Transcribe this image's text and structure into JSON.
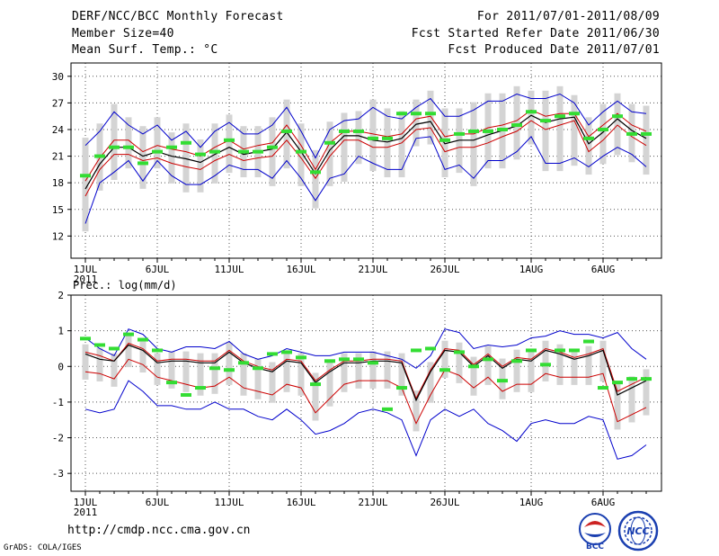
{
  "header": {
    "title": "DERF/NCC/BCC Monthly Forecast",
    "member_size": "Member Size=40",
    "variable": "Mean Surf. Temp.: °C",
    "period": "For 2011/07/01-2011/08/09",
    "started": "Fcst Started Refer Date 2011/06/30",
    "produced": "Fcst Produced Date 2011/07/01"
  },
  "footer": {
    "url": "http://cmdp.ncc.cma.gov.cn",
    "credit": "GrADS: COLA/IGES",
    "logo_bcc": "BCC",
    "logo_ncc": "NCC"
  },
  "colors": {
    "envelope": "#0000cc",
    "spread": "#cc0000",
    "mean": "#000000",
    "observed": "#33dd33",
    "box": "#d4d4d4",
    "grid": "#555555"
  },
  "chart_data": [
    {
      "type": "line",
      "title": "Mean Surf. Temp.: °C",
      "x_tick_labels": [
        "1JUL",
        "6JUL",
        "11JUL",
        "16JUL",
        "21JUL",
        "26JUL",
        "1AUG",
        "6AUG"
      ],
      "x_tick_days": [
        1,
        6,
        11,
        16,
        21,
        26,
        32,
        37
      ],
      "year_label": "2011",
      "y_ticks": [
        12,
        15,
        18,
        21,
        24,
        27,
        30
      ],
      "ylim": [
        9.5,
        31.5
      ],
      "grid": true,
      "days": 40,
      "series": [
        {
          "name": "max",
          "values": [
            13.4,
            18,
            19.2,
            20.5,
            18.2,
            20.5,
            18.8,
            17.8,
            17.8,
            18.8,
            20,
            19.5,
            19.5,
            18.5,
            20.5,
            18.5,
            16,
            18.5,
            19,
            21,
            20.2,
            19.5,
            19.5,
            23,
            23.2,
            19.5,
            20,
            18.5,
            20.5,
            20.5,
            21.5,
            23.2,
            20.2,
            20.2,
            20.8,
            19.8,
            21,
            22,
            21.2,
            19.8
          ]
        },
        {
          "name": "min",
          "values": [
            22.2,
            23.8,
            26,
            24.5,
            23.5,
            24.5,
            22.8,
            23.8,
            22,
            23.8,
            24.8,
            23.5,
            23.5,
            24.5,
            26.5,
            23.8,
            20.8,
            24,
            25,
            25.2,
            26.5,
            25.5,
            25.2,
            26.5,
            27.5,
            25.5,
            25.5,
            26.2,
            27.2,
            27.2,
            28,
            27.5,
            27.5,
            28,
            27,
            24.5,
            26,
            27.2,
            26,
            25.8
          ]
        },
        {
          "name": "spread_upper",
          "values": [
            18.2,
            20.8,
            22.8,
            22.8,
            21.5,
            22.2,
            21.8,
            21.5,
            21,
            22,
            22.8,
            21.8,
            22.2,
            22.5,
            24.5,
            22.2,
            19.5,
            22.5,
            23.8,
            23.8,
            23.5,
            23.2,
            23.5,
            25.2,
            25.5,
            23.2,
            23.5,
            23.5,
            24.2,
            24.5,
            25,
            26.2,
            25.5,
            25.8,
            25.8,
            23.2,
            24.5,
            25.8,
            24.5,
            23.8
          ]
        },
        {
          "name": "spread_lower",
          "values": [
            16.5,
            19.5,
            21.2,
            21.2,
            20.5,
            20.8,
            20.2,
            19.8,
            19.5,
            20.5,
            21.2,
            20.5,
            20.8,
            21,
            22.8,
            20.8,
            18.5,
            21,
            22.8,
            22.8,
            22,
            22,
            22.5,
            24,
            24.2,
            21.5,
            22,
            22,
            22.5,
            23.2,
            23.8,
            25,
            24,
            24.5,
            25,
            21.5,
            22.8,
            24.5,
            23.2,
            22.2
          ]
        },
        {
          "name": "ensemble_mean",
          "values": [
            17.3,
            20.1,
            22,
            22,
            21,
            21.5,
            21,
            20.7,
            20.3,
            21.2,
            22,
            21.2,
            21.5,
            21.8,
            23.7,
            21.5,
            19,
            21.7,
            23.3,
            23.3,
            22.8,
            22.6,
            23,
            24.6,
            24.9,
            22.4,
            22.8,
            22.8,
            23.4,
            23.9,
            24.4,
            25.6,
            24.8,
            25.2,
            25.4,
            22.4,
            23.7,
            25.2,
            23.9,
            23
          ]
        },
        {
          "name": "observed",
          "values": [
            18.8,
            21,
            22,
            22,
            20.2,
            21.5,
            22,
            22.5,
            21.2,
            21.5,
            22.8,
            21.5,
            21.5,
            22,
            23.8,
            21.5,
            19.2,
            22.5,
            23.8,
            23.8,
            23,
            23,
            25.8,
            25.8,
            25.8,
            22.8,
            23.5,
            23.8,
            23.8,
            24,
            24.5,
            26,
            25,
            25.5,
            25.8,
            23,
            24,
            25.5,
            23.5,
            23.5
          ]
        }
      ]
    },
    {
      "type": "line",
      "title": "Prec.: log(mm/d)",
      "x_tick_labels": [
        "1JUL",
        "6JUL",
        "11JUL",
        "16JUL",
        "21JUL",
        "26JUL",
        "1AUG",
        "6AUG"
      ],
      "x_tick_days": [
        1,
        6,
        11,
        16,
        21,
        26,
        32,
        37
      ],
      "year_label": "2011",
      "y_ticks": [
        -3,
        -2,
        -1,
        0,
        1,
        2
      ],
      "ylim": [
        -3.5,
        2
      ],
      "grid": true,
      "days": 40,
      "series": [
        {
          "name": "max",
          "values": [
            0.8,
            0.5,
            0.3,
            1.05,
            0.9,
            0.5,
            0.4,
            0.55,
            0.55,
            0.5,
            0.7,
            0.35,
            0.2,
            0.3,
            0.5,
            0.4,
            0.3,
            0.3,
            0.4,
            0.4,
            0.4,
            0.3,
            0.2,
            -0.05,
            0.3,
            1.05,
            0.95,
            0.5,
            0.6,
            0.55,
            0.6,
            0.8,
            0.85,
            1,
            0.9,
            0.9,
            0.8,
            0.95,
            0.5,
            0.2
          ]
        },
        {
          "name": "min",
          "values": [
            -1.2,
            -1.3,
            -1.2,
            -0.4,
            -0.7,
            -1.1,
            -1.1,
            -1.2,
            -1.2,
            -1,
            -1.2,
            -1.2,
            -1.4,
            -1.5,
            -1.2,
            -1.5,
            -1.9,
            -1.8,
            -1.6,
            -1.3,
            -1.2,
            -1.3,
            -1.5,
            -2.5,
            -1.5,
            -1.2,
            -1.4,
            -1.2,
            -1.6,
            -1.8,
            -2.1,
            -1.6,
            -1.5,
            -1.6,
            -1.6,
            -1.4,
            -1.5,
            -2.6,
            -2.5,
            -2.2
          ]
        },
        {
          "name": "spread_upper",
          "values": [
            0.4,
            0.3,
            0.15,
            0.65,
            0.5,
            0.15,
            0.2,
            0.2,
            0.15,
            0.15,
            0.45,
            0.15,
            0,
            -0.1,
            0.2,
            0.15,
            -0.4,
            -0.1,
            0.15,
            0.15,
            0.2,
            0.2,
            0.15,
            -0.9,
            -0.1,
            0.5,
            0.45,
            0.05,
            0.35,
            0,
            0.25,
            0.2,
            0.5,
            0.4,
            0.25,
            0.35,
            0.5,
            -0.7,
            -0.5,
            -0.3
          ]
        },
        {
          "name": "spread_lower",
          "values": [
            -0.15,
            -0.2,
            -0.35,
            0.2,
            0.05,
            -0.3,
            -0.4,
            -0.5,
            -0.6,
            -0.55,
            -0.3,
            -0.6,
            -0.7,
            -0.8,
            -0.5,
            -0.6,
            -1.3,
            -0.9,
            -0.5,
            -0.4,
            -0.4,
            -0.4,
            -0.6,
            -1.6,
            -0.8,
            -0.1,
            -0.25,
            -0.6,
            -0.3,
            -0.7,
            -0.5,
            -0.5,
            -0.2,
            -0.3,
            -0.3,
            -0.3,
            -0.2,
            -1.55,
            -1.35,
            -1.15
          ]
        },
        {
          "name": "ensemble_mean",
          "values": [
            0.35,
            0.2,
            0.15,
            0.6,
            0.45,
            0.1,
            0.15,
            0.15,
            0.1,
            0.1,
            0.4,
            0.1,
            -0.05,
            -0.15,
            0.15,
            0.1,
            -0.45,
            -0.15,
            0.1,
            0.1,
            0.15,
            0.15,
            0.1,
            -0.95,
            -0.15,
            0.45,
            0.4,
            0,
            0.3,
            -0.05,
            0.2,
            0.15,
            0.45,
            0.35,
            0.2,
            0.3,
            0.45,
            -0.8,
            -0.6,
            -0.4
          ]
        },
        {
          "name": "observed",
          "values": [
            0.78,
            0.6,
            0.5,
            0.9,
            0.75,
            0.45,
            -0.45,
            -0.8,
            -0.6,
            -0.05,
            -0.1,
            0.1,
            -0.05,
            0.35,
            0.4,
            0.25,
            -0.5,
            0.15,
            0.2,
            0.2,
            0.1,
            -1.2,
            -0.6,
            0.45,
            0.5,
            -0.1,
            0.4,
            0,
            0.2,
            -0.4,
            0.15,
            0.45,
            0.05,
            0.45,
            0.45,
            0.7,
            -0.6,
            -0.45,
            -0.35,
            -0.35
          ]
        }
      ]
    }
  ]
}
